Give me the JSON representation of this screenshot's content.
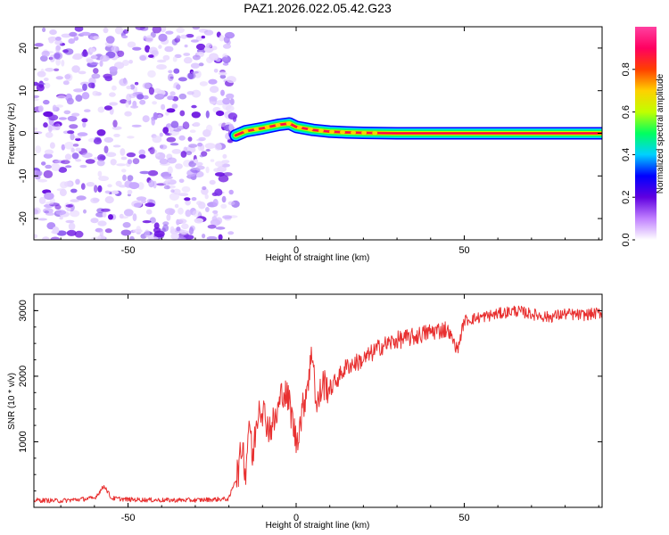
{
  "title": "PAZ1.2026.022.05.42.G23",
  "chart_data": [
    {
      "type": "heatmap",
      "panel": "spectrogram",
      "xlabel": "Height of straight line (km)",
      "ylabel": "Frequency (Hz)",
      "xlim": [
        -78,
        91
      ],
      "ylim": [
        -25,
        25
      ],
      "xticks": [
        -50,
        0,
        50
      ],
      "yticks": [
        -20,
        -10,
        0,
        10,
        20
      ],
      "xtick_labels": [
        "-50",
        "0",
        "50"
      ],
      "ytick_labels": [
        "-20",
        "-10",
        "0",
        "10",
        "20"
      ],
      "noise_region_x": [
        -78,
        -18
      ],
      "signal_onset_x": -18,
      "signal_ridge": {
        "x": [
          -18,
          -15,
          -10,
          -5,
          -2,
          0,
          5,
          10,
          15,
          20,
          30,
          50,
          70,
          91
        ],
        "freq": [
          -0.5,
          0.5,
          1.2,
          2.0,
          2.3,
          1.5,
          0.8,
          0.4,
          0.2,
          0.1,
          0.0,
          0.0,
          0.0,
          0.0
        ]
      },
      "colorbar": {
        "label": "Normalized spectral amplitude",
        "range": [
          0,
          1
        ],
        "ticks": [
          0.0,
          0.2,
          0.4,
          0.6,
          0.8
        ],
        "tick_labels": [
          "0.0",
          "0.2",
          "0.4",
          "0.6",
          "0.8"
        ],
        "colors": [
          "#ffffff",
          "#c080ff",
          "#6000e0",
          "#0000ff",
          "#00d0ff",
          "#00ff60",
          "#c0ff00",
          "#ffd000",
          "#ff4000",
          "#ff0060",
          "#ff40a0"
        ]
      }
    },
    {
      "type": "line",
      "panel": "snr",
      "xlabel": "Height of straight line (km)",
      "ylabel": "SNR (10 * v/v)",
      "xlim": [
        -78,
        91
      ],
      "ylim": [
        0,
        3250
      ],
      "xticks": [
        -50,
        0,
        50
      ],
      "yticks": [
        1000,
        2000,
        3000
      ],
      "xtick_labels": [
        "-50",
        "0",
        "50"
      ],
      "ytick_labels": [
        "1000",
        "2000",
        "3000"
      ],
      "series": [
        {
          "name": "SNR",
          "color": "#e83030",
          "x": [
            -78,
            -70,
            -60,
            -57,
            -55,
            -50,
            -40,
            -30,
            -20,
            -17,
            -16,
            -15,
            -14,
            -13,
            -12,
            -11,
            -10,
            -8,
            -6,
            -4,
            -2,
            0,
            2,
            4,
            5,
            6,
            8,
            10,
            15,
            20,
            25,
            30,
            35,
            40,
            45,
            48,
            50,
            55,
            60,
            65,
            70,
            75,
            80,
            85,
            91
          ],
          "values": [
            110,
            100,
            140,
            330,
            140,
            120,
            110,
            110,
            130,
            600,
            1000,
            500,
            1400,
            700,
            1200,
            1600,
            1500,
            1200,
            1350,
            1800,
            1600,
            1000,
            1500,
            2100,
            2400,
            1500,
            1900,
            1800,
            2150,
            2250,
            2450,
            2550,
            2600,
            2680,
            2720,
            2400,
            2850,
            2900,
            2950,
            3000,
            2950,
            2900,
            2950,
            2930,
            2970
          ]
        }
      ]
    }
  ]
}
